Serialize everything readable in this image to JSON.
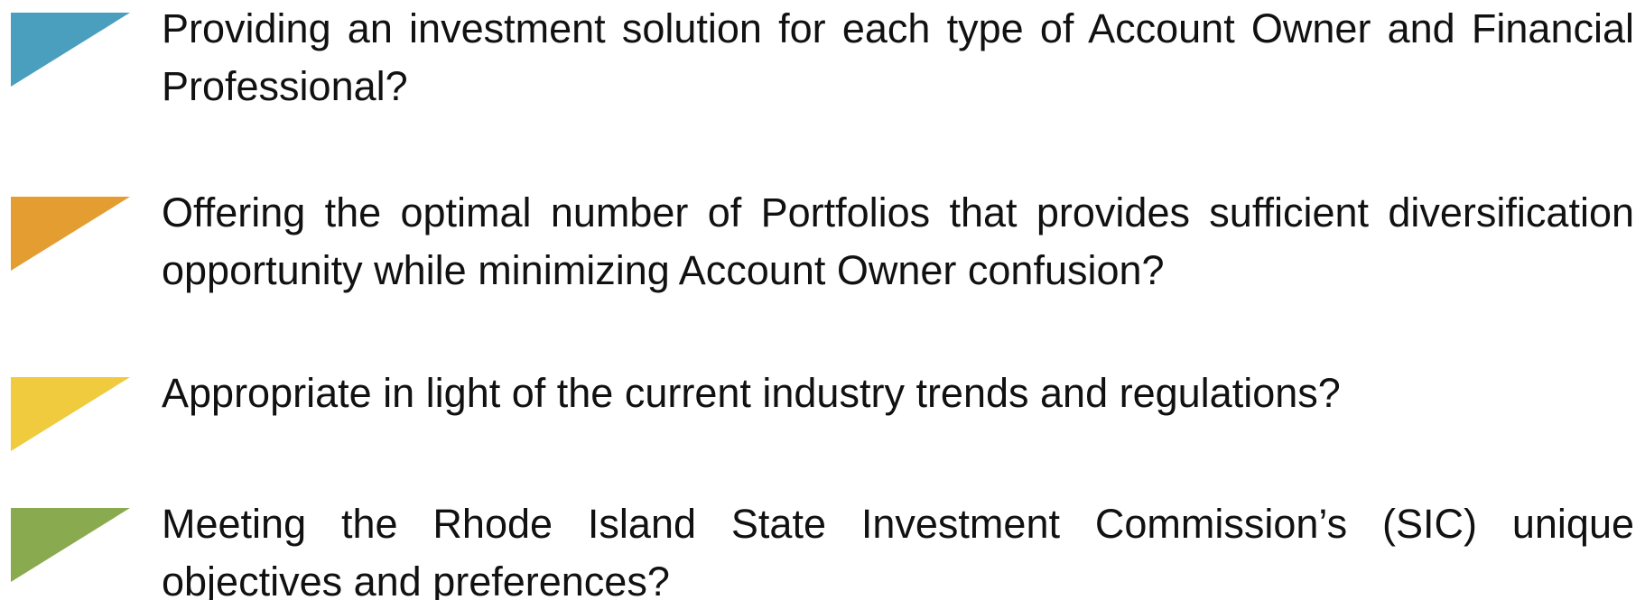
{
  "items": [
    {
      "text": "Providing an investment solution for each type of Account Owner and Financial Professional?",
      "color": "#4a9fbe"
    },
    {
      "text": "Offering the optimal number of Portfolios that provides sufficient diversification opportunity while minimizing Account Owner confusion?",
      "color": "#e39d31"
    },
    {
      "text": "Appropriate in light of the current industry trends and regulations?",
      "color": "#efcb3d"
    },
    {
      "text": "Meeting the Rhode Island State Investment Commission’s (SIC) unique objectives and preferences?",
      "color": "#89aa4f"
    }
  ]
}
